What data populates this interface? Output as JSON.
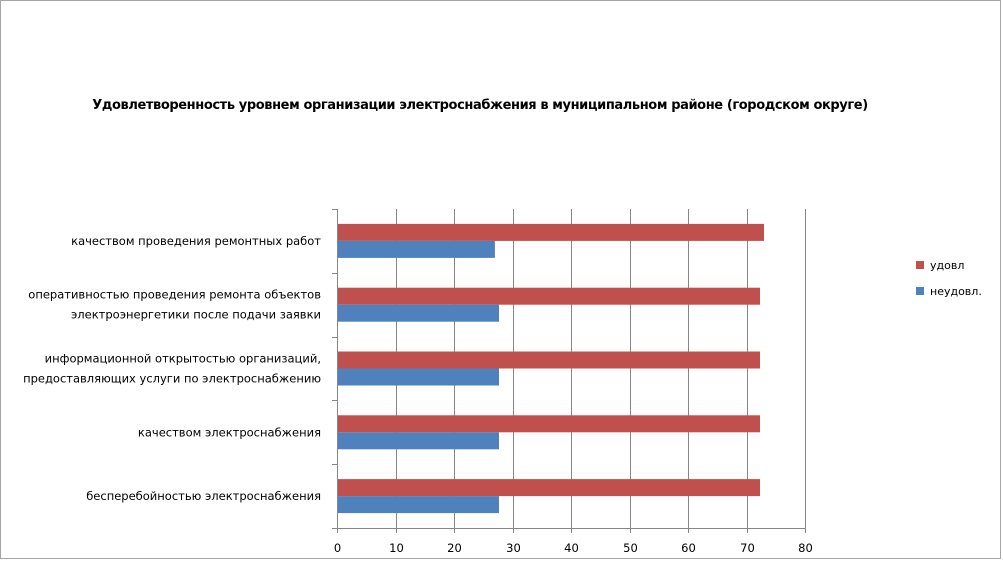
{
  "chart_data": {
    "type": "bar",
    "orientation": "horizontal",
    "title": "Удовлетворенность уровнем организации электроснабжения в муниципальном районе (городском округе)",
    "categories": [
      [
        "качеством проведения ремонтных работ"
      ],
      [
        "оперативностью проведения ремонта объектов",
        "электроэнергетики после подачи заявки"
      ],
      [
        "информационной открытостью организаций,",
        "предоставляющих услуги по электроснабжению"
      ],
      [
        "качеством электроснабжения"
      ],
      [
        "бесперебойностью электроснабжения"
      ]
    ],
    "series": [
      {
        "name": "удовл",
        "color": "#c0504d",
        "values": [
          73,
          72.3,
          72.3,
          72.3,
          72.3
        ]
      },
      {
        "name": "неудовл.",
        "color": "#4f81bd",
        "values": [
          27,
          27.7,
          27.7,
          27.7,
          27.7
        ]
      }
    ],
    "xlim": [
      0,
      80
    ],
    "xticks": [
      "0",
      "10",
      "20",
      "30",
      "40",
      "50",
      "60",
      "70",
      "80"
    ],
    "grid": true,
    "legend_position": "right"
  }
}
